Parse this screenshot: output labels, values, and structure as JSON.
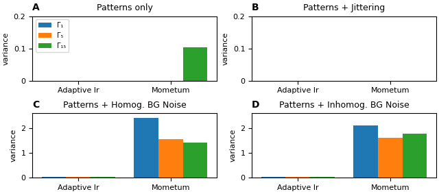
{
  "chart_data": [
    {
      "type": "bar",
      "title": "Patterns only",
      "annotations": [
        "A"
      ],
      "y_label": "variance",
      "categories": [
        "Adaptive lr",
        "Mometum"
      ],
      "series": [
        {
          "name": "Γ₁",
          "values": [
            0,
            0
          ]
        },
        {
          "name": "Γ₅",
          "values": [
            0,
            0
          ]
        },
        {
          "name": "Γ₁₅",
          "values": [
            0,
            0.103
          ]
        }
      ],
      "ylim": [
        0,
        0.2
      ],
      "yticks": [
        0,
        0.1,
        0.2
      ],
      "legend": "upper left"
    },
    {
      "type": "bar",
      "title": "Patterns + Jittering",
      "annotations": [
        "B"
      ],
      "y_label": "variance",
      "categories": [
        "Adaptive lr",
        "Mometum"
      ],
      "series": [
        {
          "name": "Γ₁",
          "values": [
            0,
            0
          ]
        },
        {
          "name": "Γ₅",
          "values": [
            0,
            0
          ]
        },
        {
          "name": "Γ₁₅",
          "values": [
            0,
            0
          ]
        }
      ],
      "ylim": [
        0,
        0.2
      ],
      "yticks": [
        0,
        0.1,
        0.2
      ]
    },
    {
      "type": "bar",
      "title": "Patterns + Homog. BG Noise",
      "annotations": [
        "C"
      ],
      "y_label": "variance",
      "categories": [
        "Adaptive lr",
        "Mometum"
      ],
      "series": [
        {
          "name": "Γ₁",
          "values": [
            0.02,
            2.42
          ]
        },
        {
          "name": "Γ₅",
          "values": [
            0.02,
            1.55
          ]
        },
        {
          "name": "Γ₁₅",
          "values": [
            0.02,
            1.42
          ]
        }
      ],
      "ylim": [
        0,
        2.6
      ],
      "yticks": [
        0,
        1,
        2
      ]
    },
    {
      "type": "bar",
      "title": "Patterns + Inhomog. BG Noise",
      "annotations": [
        "D"
      ],
      "y_label": "variance",
      "categories": [
        "Adaptive lr",
        "Mometum"
      ],
      "series": [
        {
          "name": "Γ₁",
          "values": [
            0.02,
            2.1
          ]
        },
        {
          "name": "Γ₅",
          "values": [
            0.02,
            1.6
          ]
        },
        {
          "name": "Γ₁₅",
          "values": [
            0.02,
            1.78
          ]
        }
      ],
      "ylim": [
        0,
        2.6
      ],
      "yticks": [
        0,
        1,
        2
      ]
    }
  ]
}
